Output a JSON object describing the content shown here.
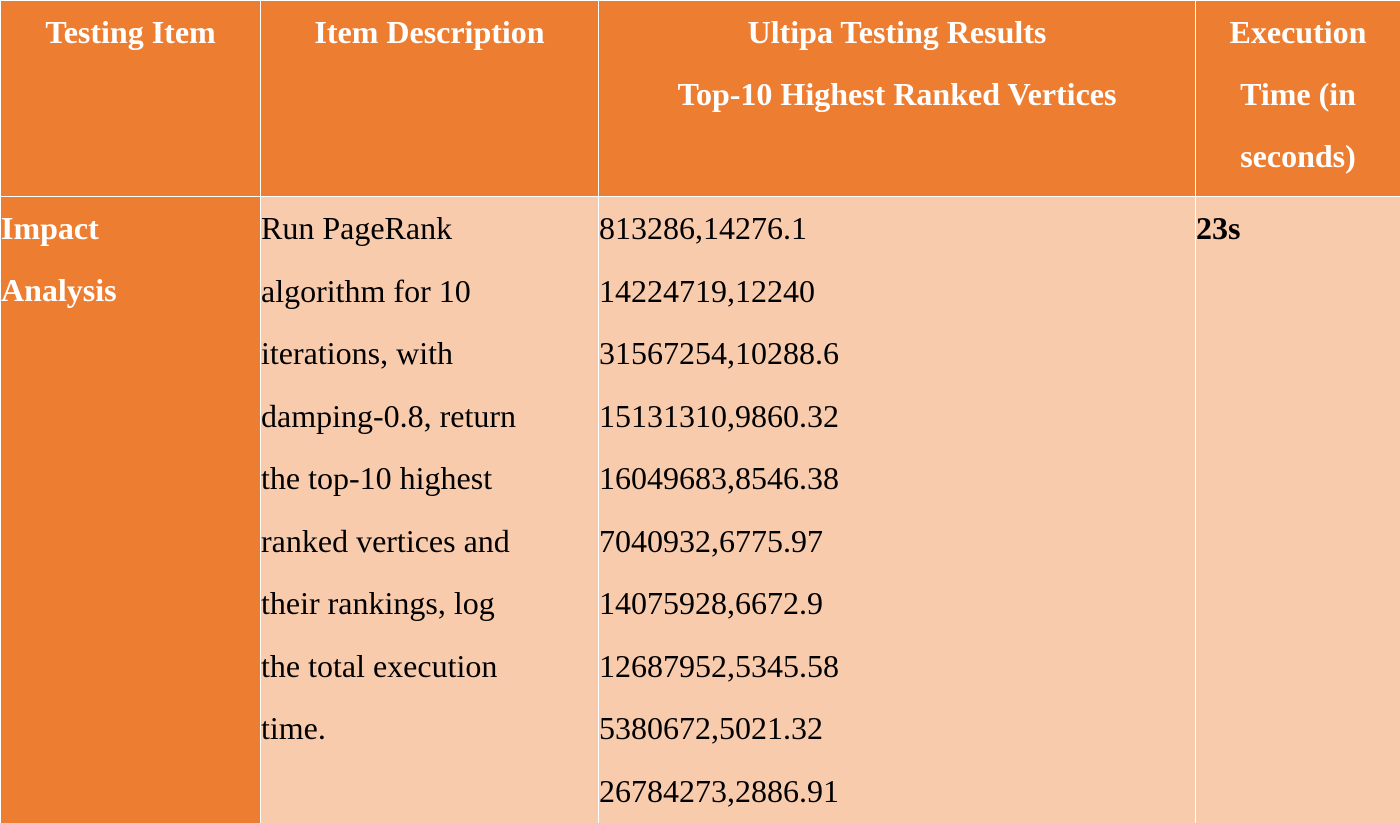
{
  "table": {
    "headers": {
      "item": "Testing Item",
      "description": "Item Description",
      "results_line1": "Ultipa Testing Results",
      "results_line2": "Top-10 Highest Ranked Vertices",
      "time_line1": "Execution",
      "time_line2": "Time (in",
      "time_line3": "seconds)"
    },
    "row": {
      "item_line1": "Impact",
      "item_line2": "Analysis",
      "description_lines": [
        "Run PageRank",
        "algorithm for 10",
        "iterations, with",
        "damping-0.8, return",
        "the top-10 highest",
        "ranked vertices and",
        "their rankings, log",
        "the total execution",
        "time."
      ],
      "results": [
        "813286,14276.1",
        "14224719,12240",
        "31567254,10288.6",
        "15131310,9860.32",
        "16049683,8546.38",
        "7040932,6775.97",
        "14075928,6672.9",
        "12687952,5345.58",
        "5380672,5021.32",
        "26784273,2886.91"
      ],
      "execution_time": "23s"
    }
  },
  "colors": {
    "header_bg": "#ed7d31",
    "body_bg": "#f8cbad",
    "header_text": "#ffffff"
  }
}
